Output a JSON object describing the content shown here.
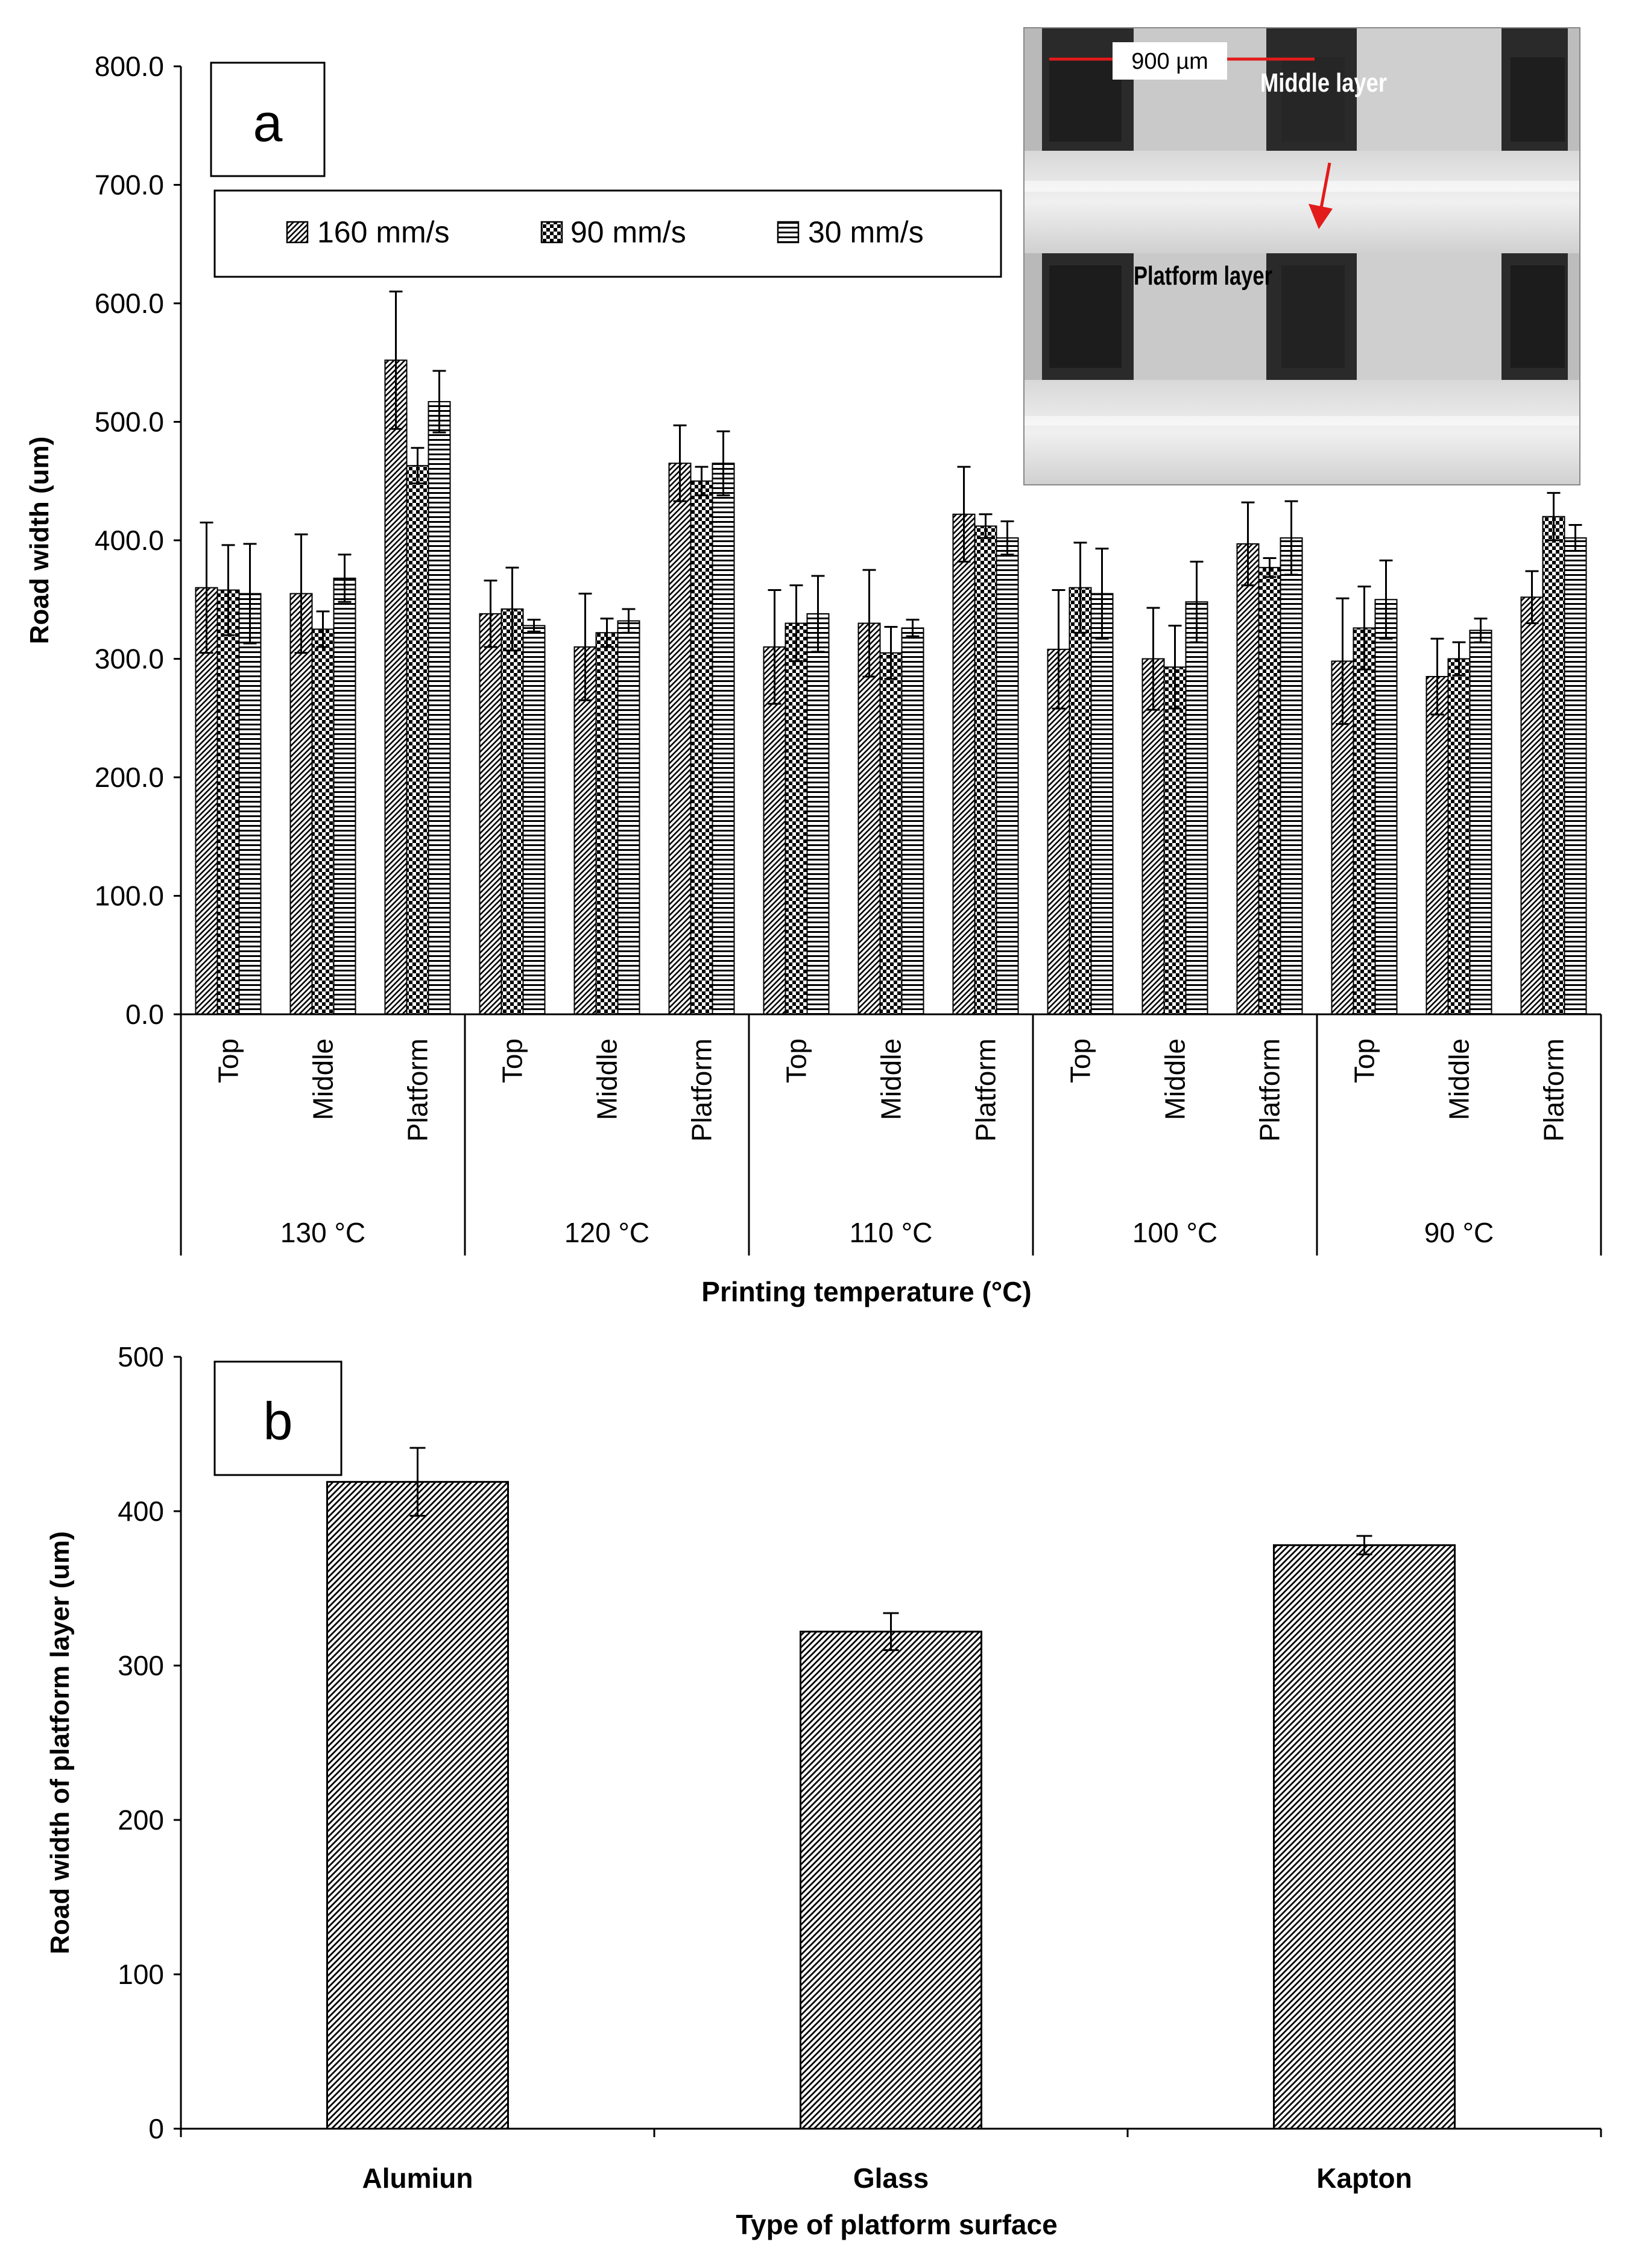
{
  "chart_data": [
    {
      "type": "bar",
      "panel_label": "a",
      "title": "",
      "xlabel": "Printing temperature (°C)",
      "ylabel": "Road width (um)",
      "ylim": [
        0,
        800
      ],
      "yticks": [
        "0.0",
        "100.0",
        "200.0",
        "300.0",
        "400.0",
        "500.0",
        "600.0",
        "700.0",
        "800.0"
      ],
      "legend_position": "top-left",
      "groups": [
        "130 °C",
        "120 °C",
        "110 °C",
        "100 °C",
        "90 °C"
      ],
      "subcategories": [
        "Top",
        "Middle",
        "Platform"
      ],
      "series": [
        {
          "name": "160 mm/s",
          "pattern": "diagonal",
          "values": [
            360,
            355,
            552,
            338,
            310,
            465,
            310,
            330,
            422,
            308,
            300,
            397,
            298,
            285,
            352
          ],
          "errors": [
            55,
            50,
            58,
            28,
            45,
            32,
            48,
            45,
            40,
            50,
            43,
            35,
            53,
            32,
            22
          ]
        },
        {
          "name": "90 mm/s",
          "pattern": "checker",
          "values": [
            358,
            325,
            463,
            342,
            322,
            450,
            330,
            305,
            412,
            360,
            293,
            377,
            326,
            300,
            420
          ],
          "errors": [
            38,
            15,
            15,
            35,
            12,
            12,
            32,
            22,
            10,
            38,
            35,
            8,
            35,
            14,
            20
          ]
        },
        {
          "name": "30 mm/s",
          "pattern": "horizontal",
          "values": [
            355,
            368,
            517,
            328,
            332,
            465,
            338,
            326,
            402,
            355,
            348,
            402,
            350,
            324,
            402
          ],
          "errors": [
            42,
            20,
            26,
            5,
            10,
            27,
            32,
            7,
            14,
            38,
            34,
            31,
            33,
            10,
            11
          ]
        }
      ],
      "inset": {
        "description": "microscope image",
        "scale_bar": "900 µm",
        "label_middle": "Middle layer",
        "label_platform": "Platform layer"
      }
    },
    {
      "type": "bar",
      "panel_label": "b",
      "title": "",
      "xlabel": "Type of platform surface",
      "ylabel": "Road width of platform layer  (um)",
      "ylim": [
        0,
        500
      ],
      "yticks": [
        "0",
        "100",
        "200",
        "300",
        "400",
        "500"
      ],
      "categories": [
        "Alumiun",
        "Glass",
        "Kapton"
      ],
      "values": [
        419,
        322,
        378
      ],
      "errors": [
        22,
        12,
        6
      ]
    }
  ]
}
